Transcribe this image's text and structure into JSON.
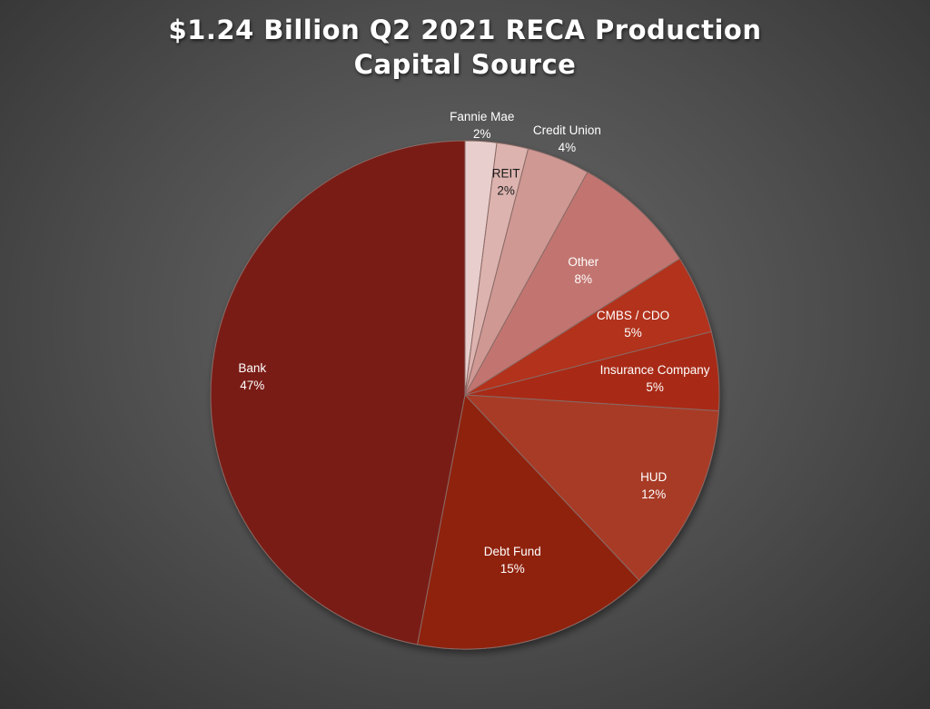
{
  "chart_data": {
    "type": "pie",
    "title_lines": [
      "$1.24 Billion Q2 2021 RECA Production",
      "Capital Source"
    ],
    "slices": [
      {
        "label": "Fannie Mae",
        "value": 2,
        "display": "2%",
        "color": "#e8cfcd",
        "label_color": "#ffffff"
      },
      {
        "label": "REIT",
        "value": 2,
        "display": "2%",
        "color": "#dcb3af",
        "label_color": "#1a1a1a"
      },
      {
        "label": "Credit Union",
        "value": 4,
        "display": "4%",
        "color": "#cf9893",
        "label_color": "#ffffff"
      },
      {
        "label": "Other",
        "value": 8,
        "display": "8%",
        "color": "#c27570",
        "label_color": "#ffffff"
      },
      {
        "label": "CMBS / CDO",
        "value": 5,
        "display": "5%",
        "color": "#b2321c",
        "label_color": "#ffffff"
      },
      {
        "label": "Insurance Company",
        "value": 5,
        "display": "5%",
        "color": "#a82a12",
        "label_color": "#ffffff"
      },
      {
        "label": "HUD",
        "value": 12,
        "display": "12%",
        "color": "#a83a27",
        "label_color": "#ffffff"
      },
      {
        "label": "Debt Fund",
        "value": 15,
        "display": "15%",
        "color": "#8f220f",
        "label_color": "#ffffff"
      },
      {
        "label": "Bank",
        "value": 47,
        "display": "47%",
        "color": "#7a1f12",
        "label_color": "#ffffff"
      }
    ]
  }
}
